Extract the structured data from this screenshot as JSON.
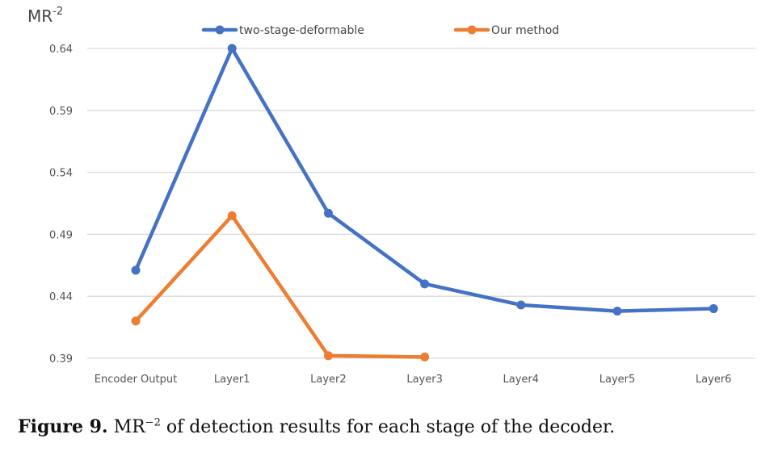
{
  "chart_data": {
    "type": "line",
    "ylabel": "MR",
    "ylabel_sup": "-2",
    "categories": [
      "Encoder Output",
      "Layer1",
      "Layer2",
      "Layer3",
      "Layer4",
      "Layer5",
      "Layer6"
    ],
    "yticks": [
      "0.39",
      "0.44",
      "0.49",
      "0.54",
      "0.59",
      "0.64"
    ],
    "ylim": [
      0.39,
      0.64
    ],
    "grid": true,
    "legend_position": "top",
    "series": [
      {
        "name": "two-stage-deformable",
        "color": "#4472C4",
        "values": [
          0.461,
          0.64,
          0.507,
          0.45,
          0.433,
          0.428,
          0.43
        ]
      },
      {
        "name": "Our method",
        "color": "#ED7D31",
        "values": [
          0.42,
          0.505,
          0.392,
          0.391,
          null,
          null,
          null
        ]
      }
    ]
  },
  "caption": {
    "label": "Figure 9.",
    "text_before": "MR",
    "sup": "−2",
    "text_after": " of detection results for each stage of the decoder."
  }
}
